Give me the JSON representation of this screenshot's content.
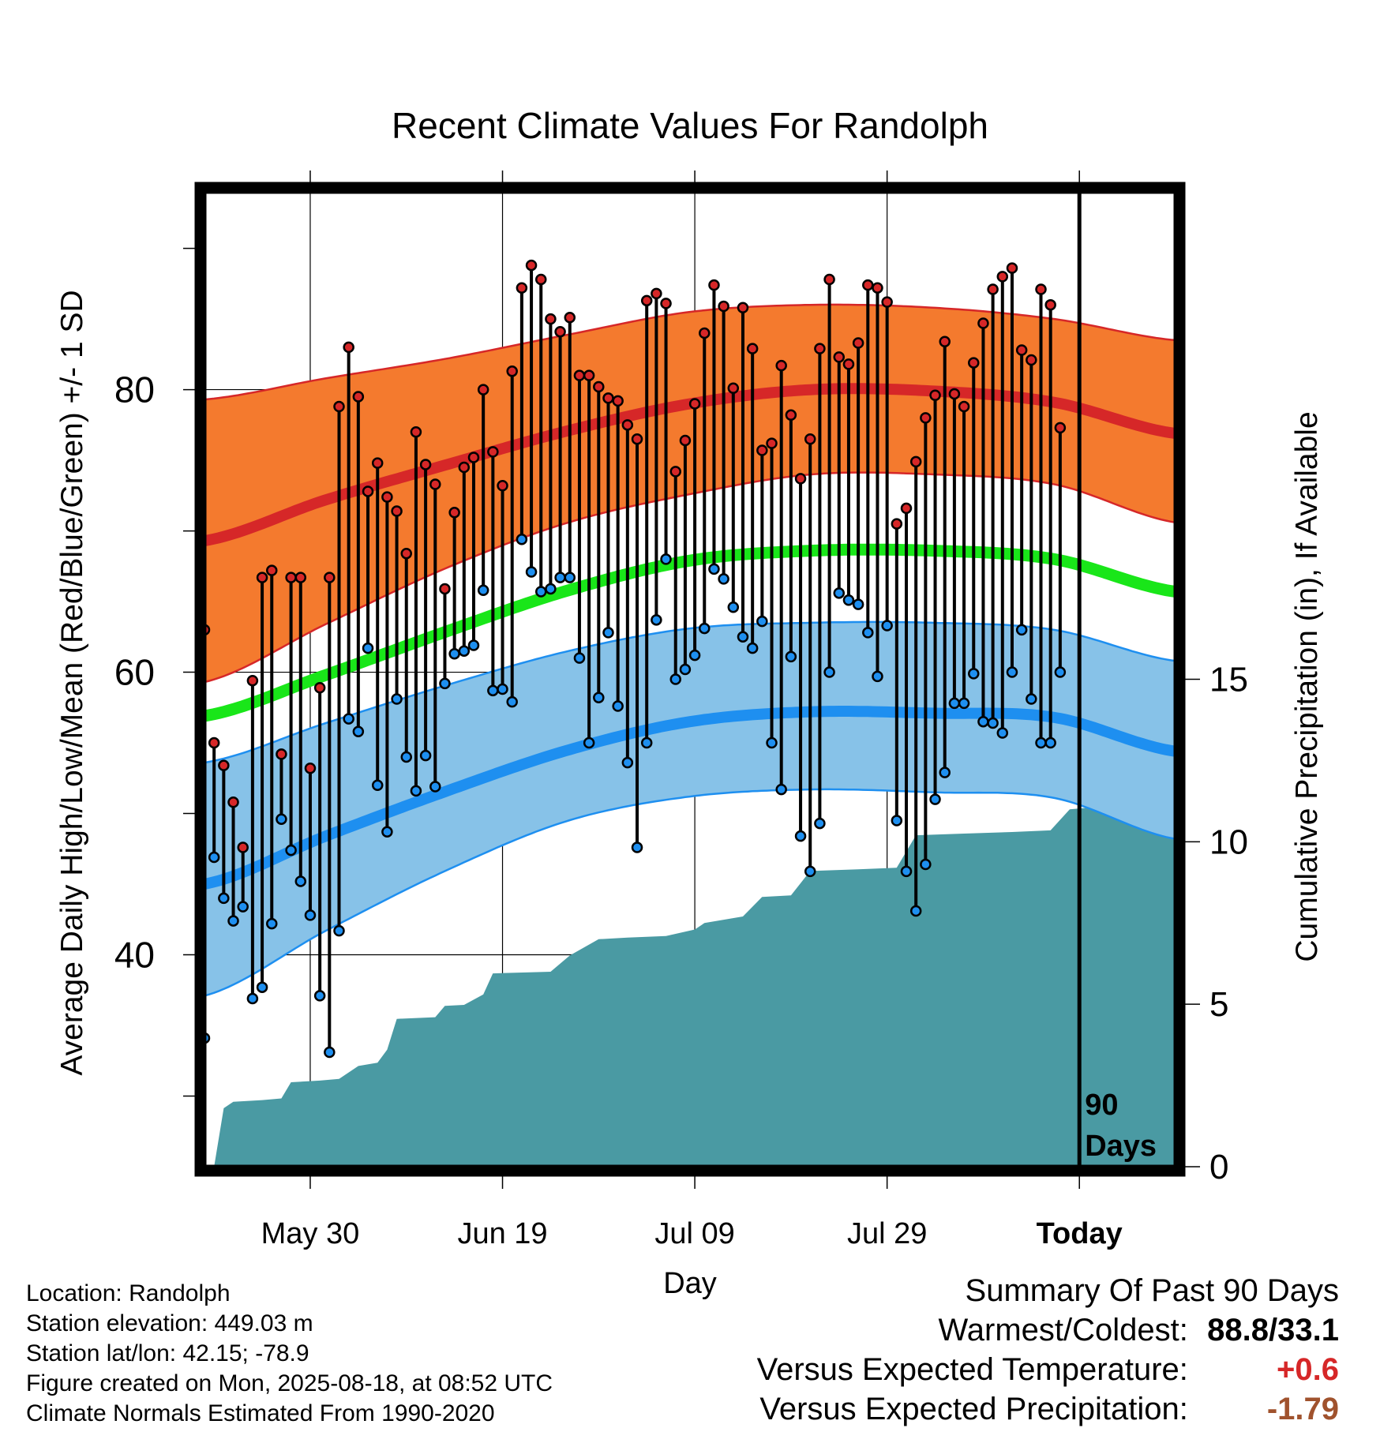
{
  "chart_data": {
    "type": "line",
    "title": "Recent Climate Values For Randolph",
    "xlabel": "Day",
    "ylabel_left": "Average Daily High/Low/Mean (Red/Blue/Green) +/- 1 SD",
    "ylabel_right": "Cumulative Precipitation (in), If Available",
    "ylim_left": [
      25,
      94
    ],
    "ylim_right": [
      0,
      30
    ],
    "yticks_left": [
      "40",
      "60",
      "80"
    ],
    "yticks_right": [
      "0",
      "5",
      "10",
      "15"
    ],
    "x_ticks": [
      {
        "day": 12,
        "label": "May 30"
      },
      {
        "day": 32,
        "label": "Jun 19"
      },
      {
        "day": 52,
        "label": "Jul 09"
      },
      {
        "day": 72,
        "label": "Jul 29"
      },
      {
        "day": 92,
        "label": "Today"
      }
    ],
    "xlim": [
      1,
      102
    ],
    "today_day": 92,
    "today_label": "90 Days",
    "normals": {
      "high_mean": [
        69.3,
        72.2,
        74.7,
        77.1,
        79.0,
        80.0,
        79.9,
        79.1,
        76.9
      ],
      "high_upper": [
        79.3,
        80.8,
        82.2,
        83.9,
        85.5,
        86.0,
        85.8,
        85.0,
        83.5
      ],
      "high_lower": [
        59.3,
        63.4,
        67.4,
        70.6,
        72.6,
        74.0,
        74.0,
        73.3,
        70.6
      ],
      "mean": [
        56.9,
        59.8,
        62.9,
        65.8,
        67.9,
        68.6,
        68.6,
        68.0,
        65.7
      ],
      "low_mean": [
        45.0,
        48.4,
        51.6,
        54.5,
        56.5,
        57.2,
        57.1,
        56.8,
        54.4
      ],
      "low_upper": [
        53.6,
        56.4,
        59.1,
        61.5,
        63.1,
        63.5,
        63.5,
        63.0,
        60.8
      ],
      "low_lower": [
        37.1,
        41.7,
        46.0,
        49.5,
        51.2,
        51.7,
        51.5,
        51.1,
        48.2
      ]
    },
    "highs": [
      63.0,
      55.0,
      53.4,
      50.8,
      47.6,
      59.4,
      66.7,
      67.2,
      54.2,
      66.7,
      66.7,
      53.2,
      58.9,
      66.7,
      78.8,
      83.0,
      79.5,
      72.8,
      74.8,
      72.4,
      71.4,
      68.4,
      77.0,
      74.7,
      73.3,
      65.9,
      71.3,
      74.5,
      75.2,
      80.0,
      75.6,
      73.2,
      81.3,
      87.2,
      88.8,
      87.8,
      85.0,
      84.1,
      85.1,
      81.0,
      81.0,
      80.2,
      79.4,
      79.2,
      77.5,
      76.5,
      86.3,
      86.8,
      86.1,
      74.2,
      76.4,
      79.0,
      84.0,
      87.4,
      85.9,
      80.1,
      85.8,
      82.9,
      75.7,
      76.2,
      81.7,
      78.2,
      73.7,
      76.5,
      82.9,
      87.8,
      82.3,
      81.8,
      83.3,
      87.4,
      87.2,
      86.2,
      70.5,
      71.6,
      74.9,
      78.0,
      79.6,
      83.4,
      79.7,
      78.8,
      81.9,
      84.7,
      87.1,
      88.0,
      88.6,
      82.8,
      82.1,
      87.1,
      86.0,
      77.3
    ],
    "lows": [
      34.1,
      46.9,
      44.0,
      42.4,
      43.4,
      36.9,
      37.7,
      42.2,
      49.6,
      47.4,
      45.2,
      42.8,
      37.1,
      33.1,
      41.7,
      56.7,
      55.8,
      61.7,
      52.0,
      48.7,
      58.1,
      54.0,
      51.6,
      54.1,
      51.9,
      59.2,
      61.3,
      61.5,
      61.9,
      65.8,
      58.7,
      58.8,
      57.9,
      69.4,
      67.1,
      65.7,
      65.9,
      66.7,
      66.7,
      61.0,
      55.0,
      58.2,
      62.8,
      57.6,
      53.6,
      47.6,
      55.0,
      63.7,
      68.0,
      59.5,
      60.2,
      61.2,
      63.1,
      67.3,
      66.6,
      64.6,
      62.5,
      61.7,
      63.6,
      55.0,
      51.7,
      61.1,
      48.4,
      45.9,
      49.3,
      60.0,
      65.6,
      65.1,
      64.8,
      62.8,
      59.7,
      63.3,
      49.5,
      45.9,
      43.1,
      46.4,
      51.0,
      52.9,
      57.8,
      57.8,
      59.9,
      56.5,
      56.4,
      55.7,
      60.0,
      63.0,
      58.1,
      55.0,
      55.0,
      60.0
    ],
    "precip_cumulative": [
      [
        1,
        0.0
      ],
      [
        2,
        0.0
      ],
      [
        3,
        1.8
      ],
      [
        4,
        2.0
      ],
      [
        7,
        2.05
      ],
      [
        9,
        2.1
      ],
      [
        10,
        2.6
      ],
      [
        13,
        2.65
      ],
      [
        15,
        2.7
      ],
      [
        17,
        3.1
      ],
      [
        19,
        3.2
      ],
      [
        20,
        3.6
      ],
      [
        21,
        4.55
      ],
      [
        25,
        4.6
      ],
      [
        26,
        4.95
      ],
      [
        28,
        4.98
      ],
      [
        30,
        5.3
      ],
      [
        31,
        5.95
      ],
      [
        37,
        6.0
      ],
      [
        39,
        6.5
      ],
      [
        42,
        7.0
      ],
      [
        45,
        7.05
      ],
      [
        49,
        7.1
      ],
      [
        52,
        7.3
      ],
      [
        53,
        7.5
      ],
      [
        57,
        7.7
      ],
      [
        59,
        8.3
      ],
      [
        62,
        8.35
      ],
      [
        64,
        9.1
      ],
      [
        69,
        9.15
      ],
      [
        73,
        9.2
      ],
      [
        75,
        10.2
      ],
      [
        80,
        10.25
      ],
      [
        85,
        10.3
      ],
      [
        89,
        10.35
      ],
      [
        91,
        11.0
      ],
      [
        93,
        11.05
      ],
      [
        101,
        11.05
      ]
    ]
  },
  "info": {
    "location": "Location: Randolph",
    "elevation": "Station elevation: 449.03 m",
    "latlon": "Station lat/lon: 42.15; -78.9",
    "created": "Figure created on Mon, 2025-08-18, at 08:52 UTC",
    "normals_period": "Climate Normals Estimated From 1990-2020"
  },
  "summary": {
    "title": "Summary Of Past 90 Days",
    "warmest_coldest_label": "Warmest/Coldest:",
    "warmest_coldest_value": "88.8/33.1",
    "temp_label": "Versus Expected Temperature:",
    "temp_value": "+0.6",
    "precip_label": "Versus Expected Precipitation:",
    "precip_value": "-1.79"
  },
  "colors": {
    "high_band": "#f47a2e",
    "high_line": "#d62728",
    "mean_line": "#19e619",
    "low_band": "#87c2e8",
    "low_line": "#1e8ff0",
    "precip_fill": "#4a9aa3"
  }
}
